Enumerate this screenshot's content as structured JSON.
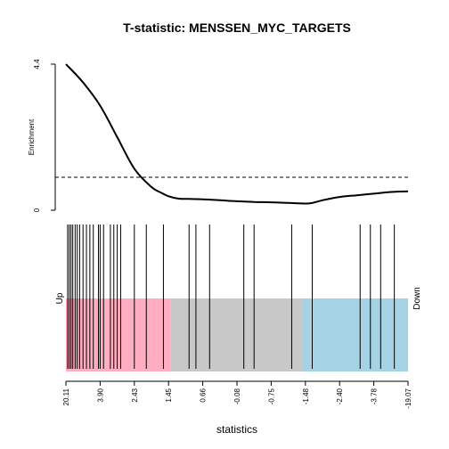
{
  "chart_data": {
    "type": "line",
    "title": "T-statistic: MENSSEN_MYC_TARGETS",
    "xlabel": "statistics",
    "ylabel": "Enrichment",
    "y_ticks": [
      "0",
      "4.4"
    ],
    "ylim": [
      0,
      4.4
    ],
    "reference_line": 1.0,
    "side_labels": {
      "left": "Up",
      "right": "Down"
    },
    "x_ticks": [
      "20.11",
      "3.90",
      "2.43",
      "1.45",
      "0.66",
      "-0.08",
      "-0.75",
      "-1.48",
      "-2.40",
      "-3.78",
      "-19.07"
    ],
    "enrichment_curve": {
      "x": [
        0.0,
        0.05,
        0.1,
        0.15,
        0.2,
        0.25,
        0.28,
        0.3,
        0.33,
        0.36,
        0.4,
        0.45,
        0.5,
        0.55,
        0.6,
        0.65,
        0.7,
        0.72,
        0.75,
        0.8,
        0.85,
        0.9,
        0.95,
        1.0
      ],
      "y": [
        4.4,
        3.85,
        3.15,
        2.2,
        1.25,
        0.7,
        0.52,
        0.42,
        0.35,
        0.34,
        0.33,
        0.3,
        0.27,
        0.25,
        0.24,
        0.22,
        0.2,
        0.22,
        0.3,
        0.4,
        0.45,
        0.5,
        0.55,
        0.57
      ]
    },
    "gene_positions": [
      0.005,
      0.01,
      0.015,
      0.02,
      0.027,
      0.033,
      0.04,
      0.05,
      0.06,
      0.07,
      0.08,
      0.095,
      0.1,
      0.11,
      0.13,
      0.14,
      0.15,
      0.16,
      0.2,
      0.235,
      0.285,
      0.36,
      0.38,
      0.42,
      0.52,
      0.55,
      0.66,
      0.72,
      0.86,
      0.89,
      0.92,
      0.96
    ],
    "bands": [
      {
        "from": 0.0,
        "to": 0.305,
        "color": "#FFAEC0"
      },
      {
        "from": 0.305,
        "to": 0.69,
        "color": "#C8C8C8"
      },
      {
        "from": 0.69,
        "to": 1.0,
        "color": "#A6D3E3"
      }
    ]
  }
}
